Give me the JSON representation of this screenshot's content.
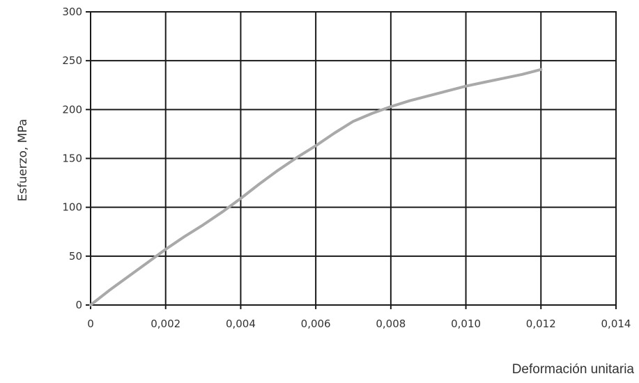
{
  "chart_data": {
    "type": "line",
    "xlabel": "Deformación unitaria",
    "ylabel": "Esfuerzo, MPa",
    "xlim": [
      0,
      0.014
    ],
    "ylim": [
      0,
      300
    ],
    "grid": true,
    "x_ticks": [
      {
        "value": 0,
        "label": "0"
      },
      {
        "value": 0.002,
        "label": "0,002"
      },
      {
        "value": 0.004,
        "label": "0,004"
      },
      {
        "value": 0.006,
        "label": "0,006"
      },
      {
        "value": 0.008,
        "label": "0,008"
      },
      {
        "value": 0.01,
        "label": "0,010"
      },
      {
        "value": 0.012,
        "label": "0,012"
      },
      {
        "value": 0.014,
        "label": "0,014"
      }
    ],
    "y_ticks": [
      {
        "value": 0,
        "label": "0"
      },
      {
        "value": 50,
        "label": "50"
      },
      {
        "value": 100,
        "label": "100"
      },
      {
        "value": 150,
        "label": "150"
      },
      {
        "value": 200,
        "label": "200"
      },
      {
        "value": 250,
        "label": "250"
      },
      {
        "value": 300,
        "label": "300"
      }
    ],
    "series": [
      {
        "color": "#a9a9a9",
        "x": [
          0,
          0.0005,
          0.001,
          0.0015,
          0.002,
          0.0025,
          0.003,
          0.0035,
          0.004,
          0.0045,
          0.005,
          0.0055,
          0.006,
          0.0065,
          0.007,
          0.0075,
          0.008,
          0.0085,
          0.009,
          0.0095,
          0.01,
          0.0105,
          0.011,
          0.0115,
          0.012
        ],
        "y": [
          0,
          15,
          29,
          43,
          57,
          70,
          82,
          95,
          109,
          124,
          138,
          151,
          163,
          176,
          188,
          196,
          203,
          209,
          214,
          219,
          224,
          228,
          232,
          236,
          241
        ]
      }
    ]
  }
}
